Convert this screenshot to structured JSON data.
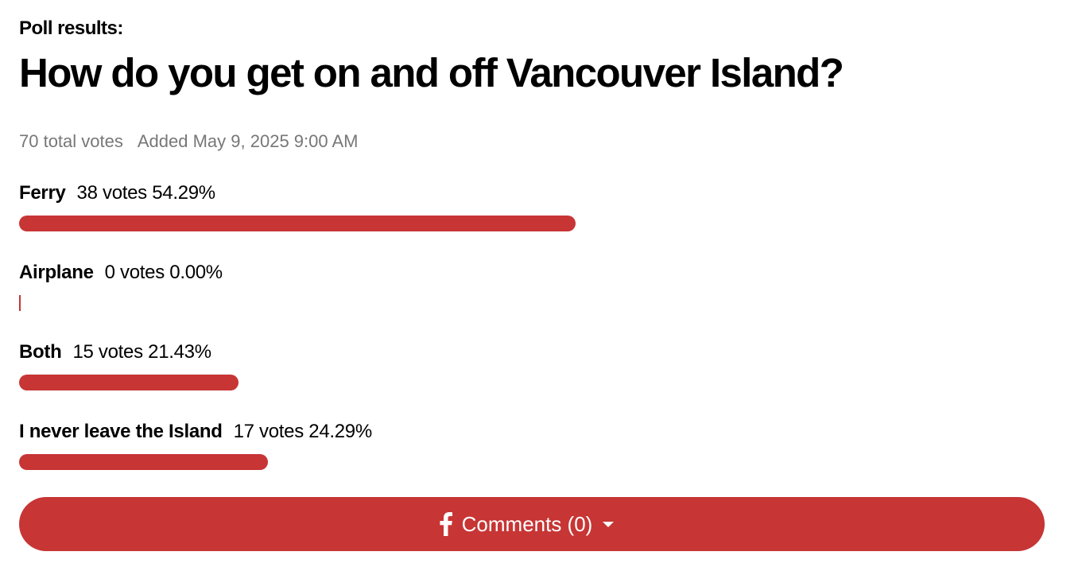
{
  "header": {
    "kicker": "Poll results:",
    "title": "How do you get on and off Vancouver Island?"
  },
  "meta": {
    "total_votes": "70 total votes",
    "added": "Added May 9, 2025 9:00 AM"
  },
  "options": [
    {
      "label": "Ferry",
      "votes": "38 votes",
      "percent": {
        "value": 54.29,
        "label": "54.29%"
      }
    },
    {
      "label": "Airplane",
      "votes": "0 votes",
      "percent": {
        "value": 0,
        "label": "0.00%"
      }
    },
    {
      "label": "Both",
      "votes": "15 votes",
      "percent": {
        "value": 21.43,
        "label": "21.43%"
      }
    },
    {
      "label": "I never leave the Island",
      "votes": "17 votes",
      "percent": {
        "value": 24.29,
        "label": "24.29%"
      }
    }
  ],
  "button": {
    "label": "Comments (0)"
  }
}
